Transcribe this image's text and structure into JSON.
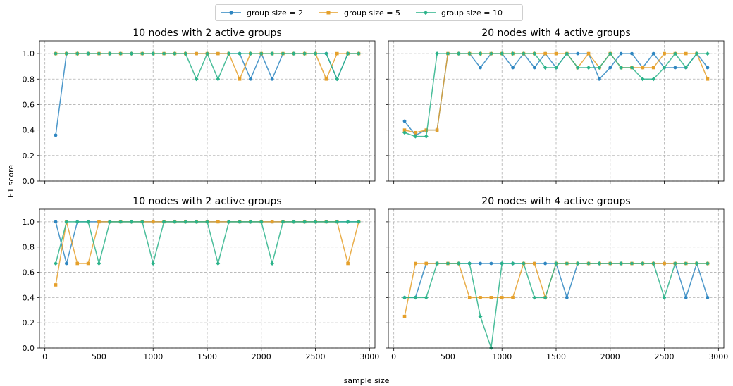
{
  "figure": {
    "xlabel": "sample size",
    "ylabel": "F1 score"
  },
  "legend": {
    "items": [
      {
        "label": "group size = 2",
        "color": "#2e86c1",
        "marker": "circle"
      },
      {
        "label": "group size = 5",
        "color": "#e5a02b",
        "marker": "square"
      },
      {
        "label": "group size = 10",
        "color": "#2bb38a",
        "marker": "diamond"
      }
    ]
  },
  "chart_data": [
    {
      "type": "line",
      "title": "10 nodes with 2 active groups",
      "xlabel": "",
      "ylabel": "F1 score",
      "xlim": [
        -50,
        3050
      ],
      "ylim": [
        0,
        1.1
      ],
      "xticks": [
        0,
        500,
        1000,
        1500,
        2000,
        2500,
        3000
      ],
      "yticks": [
        0.0,
        0.2,
        0.4,
        0.6,
        0.8,
        1.0
      ],
      "show_xticklabels": false,
      "show_yticklabels": true,
      "grid": true,
      "x": [
        100,
        200,
        300,
        400,
        500,
        600,
        700,
        800,
        900,
        1000,
        1100,
        1200,
        1300,
        1400,
        1500,
        1600,
        1700,
        1800,
        1900,
        2000,
        2100,
        2200,
        2300,
        2400,
        2500,
        2600,
        2700,
        2800,
        2900
      ],
      "series": [
        {
          "name": "group size = 2",
          "values": [
            0.36,
            1,
            1,
            1,
            1,
            1,
            1,
            1,
            1,
            1,
            1,
            1,
            1,
            1,
            1,
            1,
            1,
            1,
            0.8,
            1,
            0.8,
            1,
            1,
            1,
            1,
            1,
            0.8,
            1,
            1
          ]
        },
        {
          "name": "group size = 5",
          "values": [
            1,
            1,
            1,
            1,
            1,
            1,
            1,
            1,
            1,
            1,
            1,
            1,
            1,
            1,
            1,
            1,
            1,
            0.8,
            1,
            1,
            1,
            1,
            1,
            1,
            1,
            0.8,
            1,
            1,
            1
          ]
        },
        {
          "name": "group size = 10",
          "values": [
            1,
            1,
            1,
            1,
            1,
            1,
            1,
            1,
            1,
            1,
            1,
            1,
            1,
            0.8,
            1,
            0.8,
            1,
            1,
            1,
            1,
            1,
            1,
            1,
            1,
            1,
            1,
            0.8,
            1,
            1
          ]
        }
      ]
    },
    {
      "type": "line",
      "title": "20 nodes with 4 active groups",
      "xlabel": "",
      "ylabel": "",
      "xlim": [
        -50,
        3050
      ],
      "ylim": [
        0,
        1.1
      ],
      "xticks": [
        0,
        500,
        1000,
        1500,
        2000,
        2500,
        3000
      ],
      "yticks": [
        0.0,
        0.2,
        0.4,
        0.6,
        0.8,
        1.0
      ],
      "show_xticklabels": false,
      "show_yticklabels": false,
      "grid": true,
      "x": [
        100,
        200,
        300,
        400,
        500,
        600,
        700,
        800,
        900,
        1000,
        1100,
        1200,
        1300,
        1400,
        1500,
        1600,
        1700,
        1800,
        1900,
        2000,
        2100,
        2200,
        2300,
        2400,
        2500,
        2600,
        2700,
        2800,
        2900
      ],
      "series": [
        {
          "name": "group size = 2",
          "values": [
            0.47,
            0.36,
            0.4,
            0.4,
            1,
            1,
            1,
            0.89,
            1,
            1,
            0.89,
            1,
            0.89,
            1,
            0.89,
            1,
            1,
            1,
            0.8,
            0.89,
            1,
            1,
            0.89,
            1,
            0.89,
            0.89,
            0.89,
            1,
            0.89
          ]
        },
        {
          "name": "group size = 5",
          "values": [
            0.4,
            0.38,
            0.4,
            0.4,
            1,
            1,
            1,
            1,
            1,
            1,
            1,
            1,
            1,
            1,
            1,
            1,
            0.89,
            1,
            0.89,
            1,
            0.89,
            0.89,
            0.89,
            0.89,
            1,
            1,
            1,
            1,
            0.8
          ]
        },
        {
          "name": "group size = 10",
          "values": [
            0.38,
            0.35,
            0.35,
            1,
            1,
            1,
            1,
            1,
            1,
            1,
            1,
            1,
            1,
            0.89,
            0.89,
            1,
            0.89,
            0.89,
            0.89,
            1,
            0.89,
            0.89,
            0.8,
            0.8,
            0.89,
            1,
            0.89,
            1,
            1
          ]
        }
      ]
    },
    {
      "type": "line",
      "title": "10 nodes with 2 active groups",
      "xlabel": "sample size",
      "ylabel": "F1 score",
      "xlim": [
        -50,
        3050
      ],
      "ylim": [
        0,
        1.1
      ],
      "xticks": [
        0,
        500,
        1000,
        1500,
        2000,
        2500,
        3000
      ],
      "yticks": [
        0.0,
        0.2,
        0.4,
        0.6,
        0.8,
        1.0
      ],
      "show_xticklabels": true,
      "show_yticklabels": true,
      "grid": true,
      "x": [
        100,
        200,
        300,
        400,
        500,
        600,
        700,
        800,
        900,
        1000,
        1100,
        1200,
        1300,
        1400,
        1500,
        1600,
        1700,
        1800,
        1900,
        2000,
        2100,
        2200,
        2300,
        2400,
        2500,
        2600,
        2700,
        2800,
        2900
      ],
      "series": [
        {
          "name": "group size = 2",
          "values": [
            1,
            0.67,
            1,
            1,
            1,
            1,
            1,
            1,
            1,
            1,
            1,
            1,
            1,
            1,
            1,
            1,
            1,
            1,
            1,
            1,
            1,
            1,
            1,
            1,
            1,
            1,
            1,
            1,
            1
          ]
        },
        {
          "name": "group size = 5",
          "values": [
            0.5,
            1,
            0.67,
            0.67,
            1,
            1,
            1,
            1,
            1,
            1,
            1,
            1,
            1,
            1,
            1,
            1,
            1,
            1,
            1,
            1,
            1,
            1,
            1,
            1,
            1,
            1,
            1,
            0.67,
            1
          ]
        },
        {
          "name": "group size = 10",
          "values": [
            0.67,
            1,
            1,
            1,
            0.67,
            1,
            1,
            1,
            1,
            0.67,
            1,
            1,
            1,
            1,
            1,
            0.67,
            1,
            1,
            1,
            1,
            0.67,
            1,
            1,
            1,
            1,
            1,
            1,
            1,
            1
          ]
        }
      ]
    },
    {
      "type": "line",
      "title": "20 nodes with 4 active groups",
      "xlabel": "sample size",
      "ylabel": "",
      "xlim": [
        -50,
        3050
      ],
      "ylim": [
        0,
        1.1
      ],
      "xticks": [
        0,
        500,
        1000,
        1500,
        2000,
        2500,
        3000
      ],
      "yticks": [
        0.0,
        0.2,
        0.4,
        0.6,
        0.8,
        1.0
      ],
      "show_xticklabels": true,
      "show_yticklabels": false,
      "grid": true,
      "x": [
        100,
        200,
        300,
        400,
        500,
        600,
        700,
        800,
        900,
        1000,
        1100,
        1200,
        1300,
        1400,
        1500,
        1600,
        1700,
        1800,
        1900,
        2000,
        2100,
        2200,
        2300,
        2400,
        2500,
        2600,
        2700,
        2800,
        2900
      ],
      "series": [
        {
          "name": "group size = 2",
          "values": [
            0.4,
            0.4,
            0.67,
            0.67,
            0.67,
            0.67,
            0.67,
            0.67,
            0.67,
            0.67,
            0.67,
            0.67,
            0.67,
            0.67,
            0.67,
            0.4,
            0.67,
            0.67,
            0.67,
            0.67,
            0.67,
            0.67,
            0.67,
            0.67,
            0.67,
            0.67,
            0.4,
            0.67,
            0.4
          ]
        },
        {
          "name": "group size = 5",
          "values": [
            0.25,
            0.67,
            0.67,
            0.67,
            0.67,
            0.67,
            0.4,
            0.4,
            0.4,
            0.4,
            0.4,
            0.67,
            0.67,
            0.4,
            0.67,
            0.67,
            0.67,
            0.67,
            0.67,
            0.67,
            0.67,
            0.67,
            0.67,
            0.67,
            0.67,
            0.67,
            0.67,
            0.67,
            0.67
          ]
        },
        {
          "name": "group size = 10",
          "values": [
            0.4,
            0.4,
            0.4,
            0.67,
            0.67,
            0.67,
            0.67,
            0.25,
            0.0,
            0.67,
            0.67,
            0.67,
            0.4,
            0.4,
            0.67,
            0.67,
            0.67,
            0.67,
            0.67,
            0.67,
            0.67,
            0.67,
            0.67,
            0.67,
            0.4,
            0.67,
            0.67,
            0.67,
            0.67
          ]
        }
      ]
    }
  ]
}
